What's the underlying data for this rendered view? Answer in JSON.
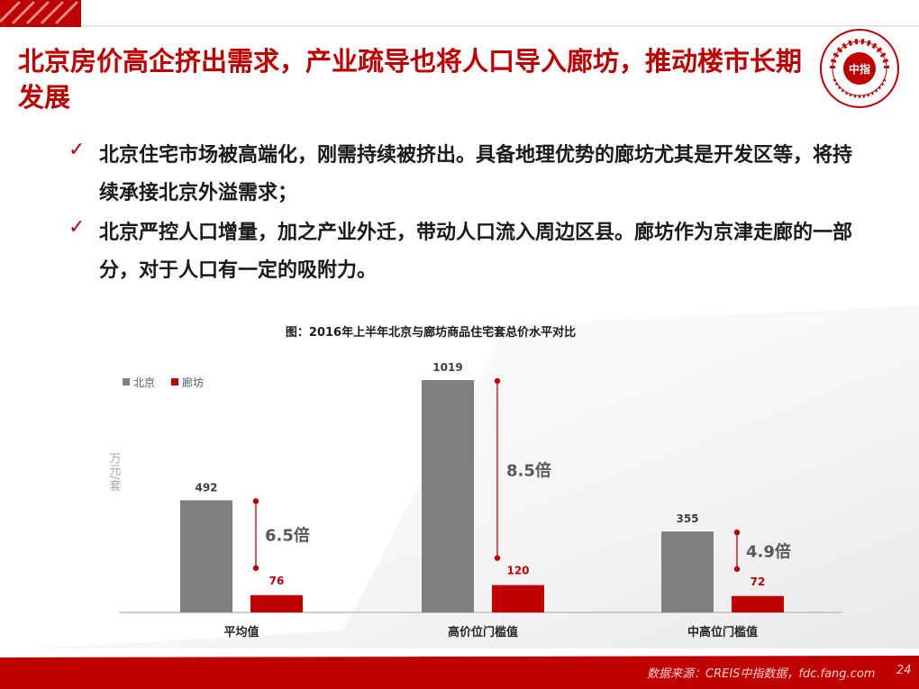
{
  "slide": {
    "title": "北京房价高企挤出需求，产业疏导也将人口导入廊坊，推动楼市长期发展",
    "logo_text": "中指",
    "logo_ring_text": "中国指数研究院 CHINA INDEX ACADEMY",
    "bullets": [
      {
        "icon": "check-icon",
        "text": "北京住宅市场被高端化，刚需持续被挤出。具备地理优势的廊坊尤其是开发区等，将持续承接北京外溢需求；"
      },
      {
        "icon": "check-icon",
        "text": "北京严控人口增量，加之产业外迁，带动人口流入周边区县。廊坊作为京津走廊的一部分，对于人口有一定的吸附力。"
      }
    ],
    "footer_source": "数据来源：CREIS中指数据，fdc.fang.com",
    "page_number": "24"
  },
  "colors": {
    "accent": "#c00000",
    "series_beijing": "#7f7f7f",
    "series_langfang": "#c00000"
  },
  "chart_data": {
    "type": "bar",
    "title": "图：2016年上半年北京与廊坊商品住宅套总价水平对比",
    "ylabel": "万元/套",
    "categories": [
      "平均值",
      "高价位门槛值",
      "中高位门槛值"
    ],
    "series": [
      {
        "name": "北京",
        "values": [
          492,
          1019,
          355
        ]
      },
      {
        "name": "廊坊",
        "values": [
          76,
          120,
          72
        ]
      }
    ],
    "ratios": [
      "6.5倍",
      "8.5倍",
      "4.9倍"
    ],
    "ylim": [
      0,
      1019
    ],
    "legend": "top-left",
    "grid": false
  }
}
